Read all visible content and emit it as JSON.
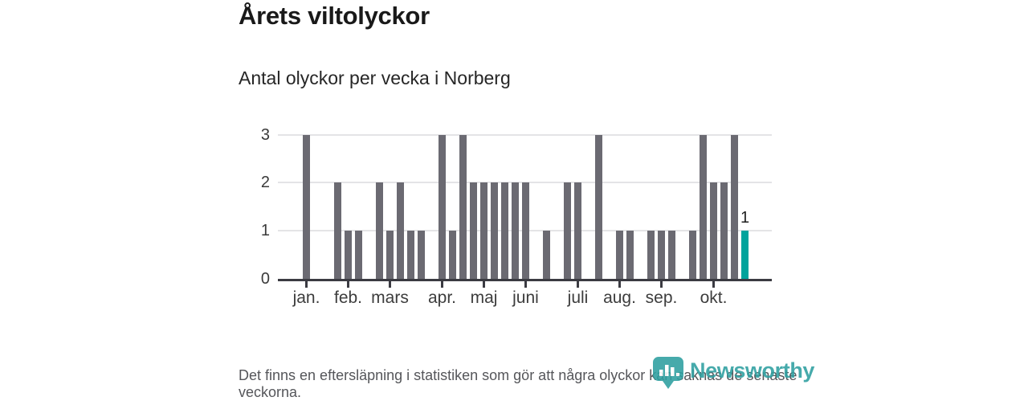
{
  "header": {
    "title": "Årets viltolyckor",
    "subtitle": "Antal olyckor per vecka i Norberg"
  },
  "chart_data": {
    "type": "bar",
    "title": "Årets viltolyckor",
    "subtitle": "Antal olyckor per vecka i Norberg",
    "x_unit": "vecka (week of year)",
    "ylabel": "Antal olyckor",
    "ylim": [
      0,
      3
    ],
    "y_ticks": [
      "0",
      "1",
      "2",
      "3"
    ],
    "grid": "horizontal",
    "weeks": [
      1,
      2,
      3,
      4,
      5,
      6,
      7,
      8,
      9,
      10,
      11,
      12,
      13,
      14,
      15,
      16,
      17,
      18,
      19,
      20,
      21,
      22,
      23,
      24,
      25,
      26,
      27,
      28,
      29,
      30,
      31,
      32,
      33,
      34,
      35,
      36,
      37,
      38,
      39,
      40,
      41,
      42,
      43
    ],
    "values": [
      3,
      0,
      0,
      2,
      1,
      1,
      0,
      2,
      1,
      2,
      1,
      1,
      0,
      3,
      1,
      3,
      2,
      2,
      2,
      2,
      2,
      2,
      0,
      1,
      0,
      2,
      2,
      0,
      3,
      0,
      1,
      1,
      0,
      1,
      1,
      1,
      0,
      1,
      3,
      2,
      2,
      3,
      1
    ],
    "month_ticks": [
      {
        "label": "jan.",
        "week": 1
      },
      {
        "label": "feb.",
        "week": 5
      },
      {
        "label": "mars",
        "week": 9
      },
      {
        "label": "apr.",
        "week": 14
      },
      {
        "label": "maj",
        "week": 18
      },
      {
        "label": "juni",
        "week": 22
      },
      {
        "label": "juli",
        "week": 27
      },
      {
        "label": "aug.",
        "week": 31
      },
      {
        "label": "sep.",
        "week": 35
      },
      {
        "label": "okt.",
        "week": 40
      }
    ],
    "highlight_last_bar": true,
    "last_bar_label": "1",
    "colors": {
      "bar": "#6b6a72",
      "highlight": "#00a39c",
      "grid": "#e4e4e6",
      "axis": "#3b3b42",
      "tick_label": "#3d3d3d"
    }
  },
  "footer": {
    "note": "Det finns en eftersläpning i statistiken som gör att några olyckor kan saknas de senaste veckorna.",
    "logo_text": "Newsworthy",
    "logo_color": "#2d9fa0"
  }
}
